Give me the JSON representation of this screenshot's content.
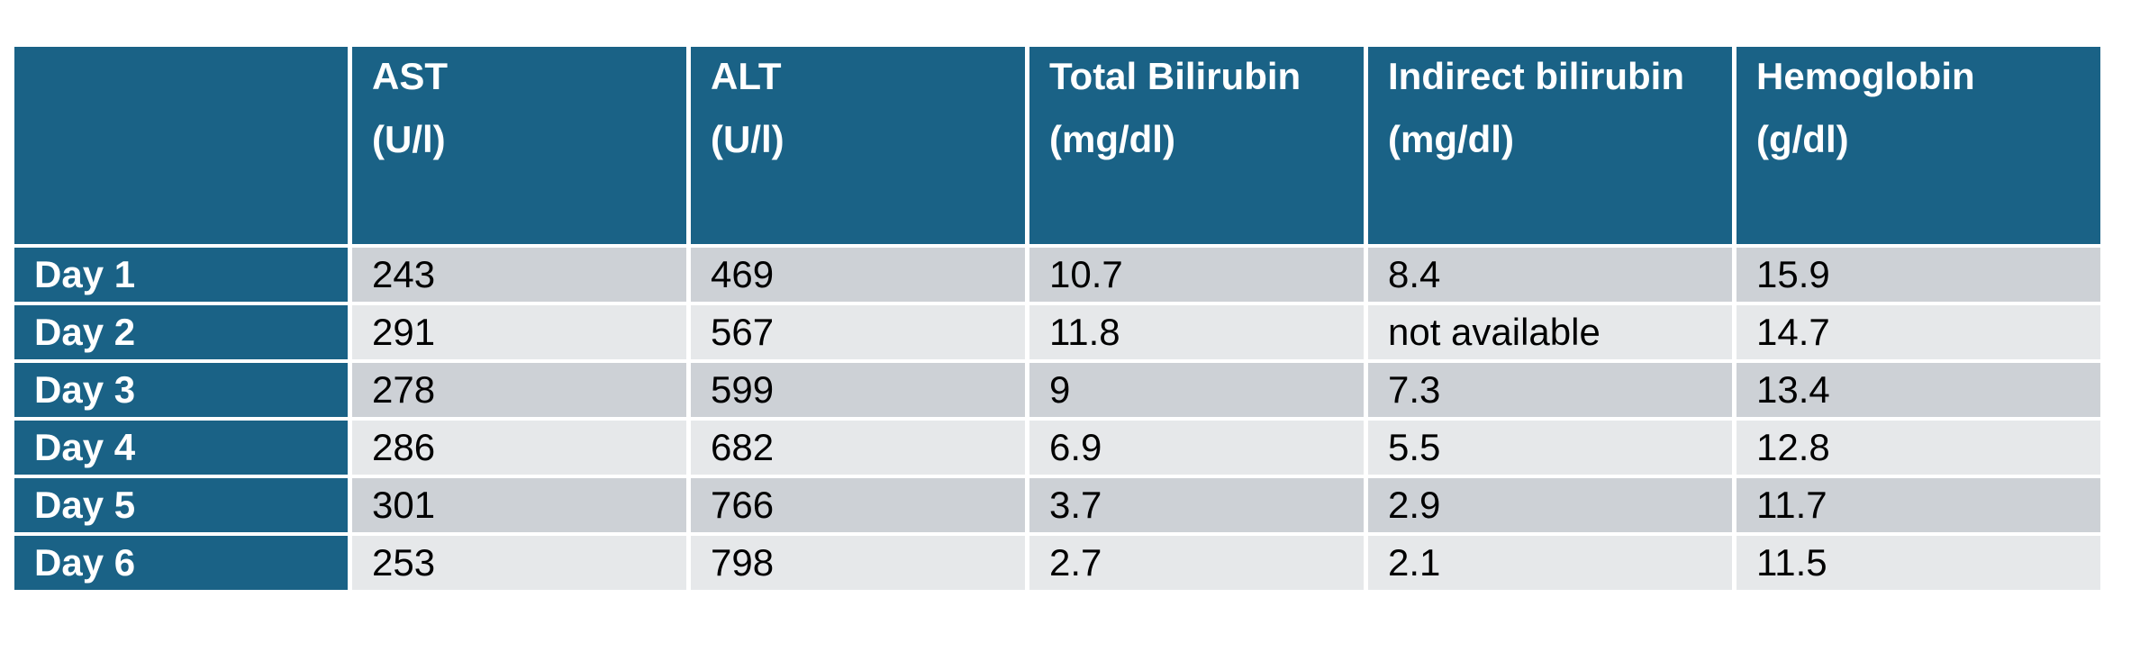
{
  "table": {
    "corner": "",
    "headers": [
      {
        "name": "AST",
        "unit": "(U/l)"
      },
      {
        "name": "ALT",
        "unit": "(U/l)"
      },
      {
        "name": "Total Bilirubin",
        "unit": "(mg/dl)"
      },
      {
        "name": "Indirect bilirubin",
        "unit": "(mg/dl)"
      },
      {
        "name": "Hemoglobin",
        "unit": "(g/dl)"
      }
    ],
    "rows": [
      {
        "label": "Day 1",
        "values": [
          "243",
          "469",
          "10.7",
          "8.4",
          "15.9"
        ]
      },
      {
        "label": "Day 2",
        "values": [
          "291",
          "567",
          "11.8",
          "not available",
          "14.7"
        ]
      },
      {
        "label": "Day 3",
        "values": [
          "278",
          "599",
          "9",
          "7.3",
          "13.4"
        ]
      },
      {
        "label": "Day 4",
        "values": [
          "286",
          "682",
          "6.9",
          "5.5",
          "12.8"
        ]
      },
      {
        "label": "Day 5",
        "values": [
          "301",
          "766",
          "3.7",
          "2.9",
          "11.7"
        ]
      },
      {
        "label": "Day 6",
        "values": [
          "253",
          "798",
          "2.7",
          "2.1",
          "11.5"
        ]
      }
    ]
  },
  "colors": {
    "header_bg": "#1a6286",
    "header_text": "#ffffff",
    "row_band_dark": "#cdd1d6",
    "row_band_light": "#e6e8ea"
  }
}
